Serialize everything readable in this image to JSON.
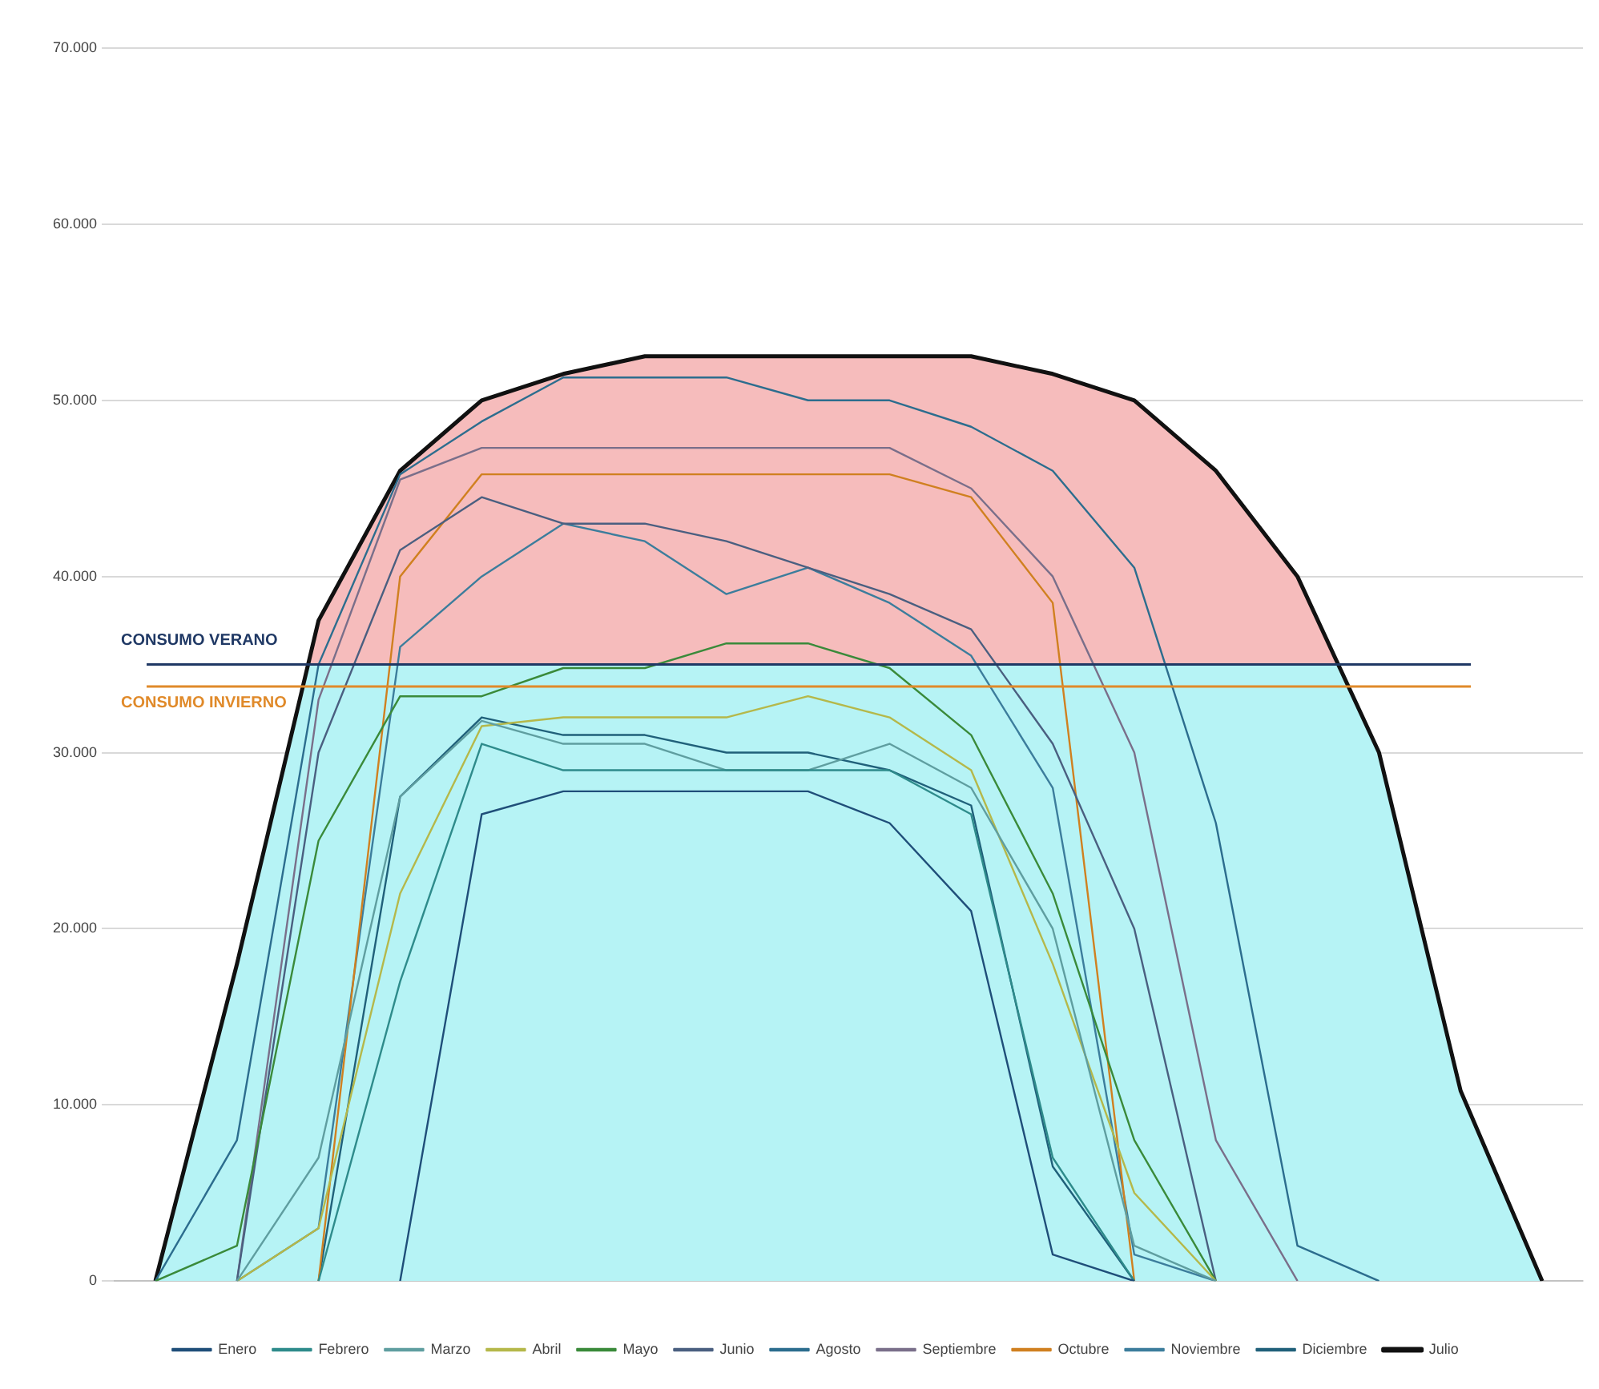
{
  "chart_data": {
    "type": "line",
    "categories": [
      null,
      null,
      null,
      null,
      null,
      null,
      null,
      null,
      null,
      null,
      null,
      null,
      null,
      null,
      null,
      null,
      null,
      null
    ],
    "series": [
      {
        "name": "Enero",
        "color": "#1f4e79",
        "values": [
          null,
          null,
          null,
          0,
          26500,
          27800,
          27800,
          27800,
          27800,
          26000,
          21000,
          1500,
          0,
          null,
          null,
          null,
          null,
          null
        ]
      },
      {
        "name": "Febrero",
        "color": "#2e8b8b",
        "values": [
          null,
          null,
          0,
          17000,
          30500,
          29000,
          29000,
          29000,
          29000,
          29000,
          26500,
          7000,
          0,
          null,
          null,
          null,
          null,
          null
        ]
      },
      {
        "name": "Marzo",
        "color": "#5f9ea0",
        "values": [
          null,
          0,
          7000,
          27500,
          31800,
          30500,
          30500,
          29000,
          29000,
          30500,
          28000,
          20000,
          2000,
          0,
          null,
          null,
          null,
          null
        ]
      },
      {
        "name": "Abril",
        "color": "#b5b84a",
        "values": [
          null,
          0,
          3000,
          22000,
          31500,
          32000,
          32000,
          32000,
          33200,
          32000,
          29000,
          18000,
          5000,
          0,
          null,
          null,
          null,
          null
        ]
      },
      {
        "name": "Mayo",
        "color": "#3a8a3a",
        "values": [
          0,
          2000,
          25000,
          33200,
          33200,
          34800,
          34800,
          36200,
          36200,
          34800,
          31000,
          22000,
          8000,
          0,
          null,
          null,
          null,
          null
        ]
      },
      {
        "name": "Junio",
        "color": "#4a5f80",
        "values": [
          null,
          0,
          30000,
          41500,
          44500,
          43000,
          43000,
          42000,
          40500,
          39000,
          37000,
          30500,
          20000,
          0,
          null,
          null,
          null,
          null
        ]
      },
      {
        "name": "Julio",
        "color": "#111111",
        "type": "area",
        "values": [
          0,
          18000,
          37500,
          46000,
          50000,
          51500,
          52500,
          52500,
          52500,
          52500,
          52500,
          51500,
          50000,
          46000,
          40000,
          30000,
          10800,
          0
        ]
      },
      {
        "name": "Agosto",
        "color": "#2c6d8e",
        "values": [
          0,
          8000,
          35000,
          45800,
          48800,
          51300,
          51300,
          51300,
          50000,
          50000,
          48500,
          46000,
          40500,
          26000,
          2000,
          0,
          null,
          null
        ]
      },
      {
        "name": "Septiembre",
        "color": "#7a6f8a",
        "values": [
          null,
          0,
          33000,
          45500,
          47300,
          47300,
          47300,
          47300,
          47300,
          47300,
          45000,
          40000,
          30000,
          8000,
          0,
          null,
          null,
          null
        ]
      },
      {
        "name": "Octubre",
        "color": "#d08020",
        "values": [
          null,
          null,
          0,
          40000,
          45800,
          45800,
          45800,
          45800,
          45800,
          45800,
          44500,
          38500,
          0,
          null,
          null,
          null,
          null,
          null
        ]
      },
      {
        "name": "Noviembre",
        "color": "#3c7d9c",
        "values": [
          null,
          0,
          3000,
          36000,
          40000,
          43000,
          42000,
          39000,
          40500,
          38500,
          35500,
          28000,
          1500,
          0,
          null,
          null,
          null,
          null
        ]
      },
      {
        "name": "Diciembre",
        "color": "#20607a",
        "values": [
          null,
          null,
          0,
          27500,
          32000,
          31000,
          31000,
          30000,
          30000,
          29000,
          27000,
          6500,
          0,
          null,
          null,
          null,
          null,
          null
        ]
      }
    ],
    "ylim": [
      0,
      70000
    ],
    "yticks": [
      {
        "value": 0,
        "label": "0"
      },
      {
        "value": 10000,
        "label": "10.000"
      },
      {
        "value": 20000,
        "label": "20.000"
      },
      {
        "value": 30000,
        "label": "30.000"
      },
      {
        "value": 40000,
        "label": "40.000"
      },
      {
        "value": 50000,
        "label": "50.000"
      },
      {
        "value": 60000,
        "label": "60.000"
      },
      {
        "value": 70000,
        "label": "70.000"
      }
    ],
    "ref_lines": [
      {
        "axis": "y",
        "value": 35000,
        "label": "CONSUMO VERANO",
        "color": "#1f3864"
      },
      {
        "axis": "y",
        "value": 33750,
        "label": "CONSUMO INVIERNO",
        "color": "#e08a2a"
      }
    ],
    "grid": "y",
    "legend": "bottom",
    "marker": "none",
    "line_style": "solid"
  }
}
